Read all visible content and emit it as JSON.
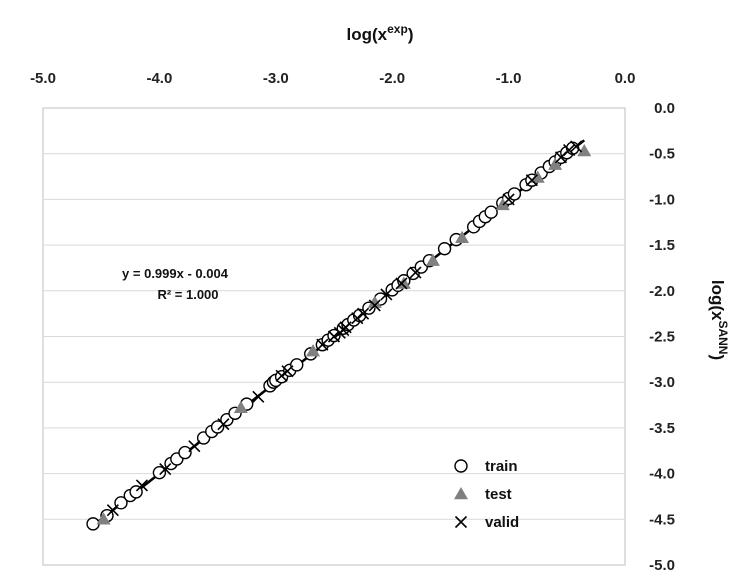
{
  "chart_data": {
    "type": "scatter",
    "x_title_base": "log(x",
    "x_title_sup": "exp",
    "x_title_close": ")",
    "y_title_base": "log(x",
    "y_title_sup": "SANN",
    "y_title_close": ")",
    "x_axis_position": "top",
    "y_axis_position": "right",
    "xlim": [
      -5.0,
      0.0
    ],
    "ylim": [
      -5.0,
      0.0
    ],
    "x_ticks": [
      -5.0,
      -4.0,
      -3.0,
      -2.0,
      -1.0,
      0.0
    ],
    "x_tick_labels": [
      "-5.0",
      "-4.0",
      "-3.0",
      "-2.0",
      "-1.0",
      "0.0"
    ],
    "y_ticks": [
      0.0,
      -0.5,
      -1.0,
      -1.5,
      -2.0,
      -2.5,
      -3.0,
      -3.5,
      -4.0,
      -4.5,
      -5.0
    ],
    "y_tick_labels": [
      "0.0",
      "-0.5",
      "-1.0",
      "-1.5",
      "-2.0",
      "-2.5",
      "-3.0",
      "-3.5",
      "-4.0",
      "-4.5",
      "-5.0"
    ],
    "grid": "horizontal",
    "legend_position": "bottom-right",
    "trendline": {
      "slope": 0.999,
      "intercept": -0.004,
      "x_range": [
        -4.6,
        -0.35
      ]
    },
    "annotation_lines": [
      "y = 0.999x - 0.004",
      "R² = 1.000"
    ],
    "series": [
      {
        "name": "train",
        "marker": "circle",
        "color": "#000000",
        "points": [
          [
            -4.57,
            -4.55
          ],
          [
            -4.45,
            -4.46
          ],
          [
            -4.33,
            -4.32
          ],
          [
            -4.25,
            -4.24
          ],
          [
            -4.2,
            -4.2
          ],
          [
            -4.0,
            -3.99
          ],
          [
            -3.9,
            -3.89
          ],
          [
            -3.85,
            -3.84
          ],
          [
            -3.78,
            -3.77
          ],
          [
            -3.62,
            -3.61
          ],
          [
            -3.55,
            -3.54
          ],
          [
            -3.5,
            -3.49
          ],
          [
            -3.42,
            -3.41
          ],
          [
            -3.35,
            -3.34
          ],
          [
            -3.25,
            -3.24
          ],
          [
            -3.05,
            -3.04
          ],
          [
            -3.02,
            -3.0
          ],
          [
            -3.0,
            -2.98
          ],
          [
            -2.95,
            -2.94
          ],
          [
            -2.88,
            -2.87
          ],
          [
            -2.82,
            -2.81
          ],
          [
            -2.7,
            -2.69
          ],
          [
            -2.6,
            -2.59
          ],
          [
            -2.55,
            -2.54
          ],
          [
            -2.5,
            -2.49
          ],
          [
            -2.42,
            -2.41
          ],
          [
            -2.38,
            -2.37
          ],
          [
            -2.33,
            -2.32
          ],
          [
            -2.28,
            -2.27
          ],
          [
            -2.2,
            -2.19
          ],
          [
            -2.1,
            -2.09
          ],
          [
            -2.0,
            -1.99
          ],
          [
            -1.95,
            -1.94
          ],
          [
            -1.9,
            -1.89
          ],
          [
            -1.82,
            -1.81
          ],
          [
            -1.75,
            -1.74
          ],
          [
            -1.68,
            -1.67
          ],
          [
            -1.55,
            -1.54
          ],
          [
            -1.45,
            -1.44
          ],
          [
            -1.3,
            -1.3
          ],
          [
            -1.25,
            -1.24
          ],
          [
            -1.2,
            -1.19
          ],
          [
            -1.15,
            -1.14
          ],
          [
            -1.05,
            -1.04
          ],
          [
            -1.0,
            -0.99
          ],
          [
            -0.95,
            -0.94
          ],
          [
            -0.85,
            -0.84
          ],
          [
            -0.8,
            -0.79
          ],
          [
            -0.72,
            -0.71
          ],
          [
            -0.65,
            -0.64
          ],
          [
            -0.6,
            -0.59
          ],
          [
            -0.55,
            -0.54
          ],
          [
            -0.5,
            -0.49
          ],
          [
            -0.45,
            -0.44
          ]
        ]
      },
      {
        "name": "test",
        "marker": "triangle",
        "color": "#808080",
        "points": [
          [
            -4.48,
            -4.5
          ],
          [
            -3.3,
            -3.28
          ],
          [
            -2.68,
            -2.66
          ],
          [
            -2.15,
            -2.13
          ],
          [
            -1.9,
            -1.92
          ],
          [
            -1.65,
            -1.67
          ],
          [
            -1.4,
            -1.42
          ],
          [
            -1.05,
            -1.06
          ],
          [
            -0.75,
            -0.76
          ],
          [
            -0.6,
            -0.62
          ],
          [
            -0.35,
            -0.47
          ]
        ]
      },
      {
        "name": "valid",
        "marker": "x",
        "color": "#000000",
        "points": [
          [
            -4.4,
            -4.4
          ],
          [
            -4.15,
            -4.13
          ],
          [
            -3.95,
            -3.95
          ],
          [
            -3.7,
            -3.7
          ],
          [
            -3.45,
            -3.46
          ],
          [
            -3.15,
            -3.16
          ],
          [
            -2.95,
            -2.93
          ],
          [
            -2.9,
            -2.88
          ],
          [
            -2.6,
            -2.59
          ],
          [
            -2.5,
            -2.5
          ],
          [
            -2.45,
            -2.46
          ],
          [
            -2.42,
            -2.43
          ],
          [
            -2.4,
            -2.4
          ],
          [
            -2.3,
            -2.3
          ],
          [
            -2.25,
            -2.25
          ],
          [
            -2.15,
            -2.16
          ],
          [
            -2.05,
            -2.04
          ],
          [
            -1.92,
            -1.92
          ],
          [
            -1.8,
            -1.8
          ],
          [
            -1.0,
            -1.0
          ],
          [
            -0.8,
            -0.79
          ],
          [
            -0.55,
            -0.54
          ],
          [
            -0.48,
            -0.46
          ],
          [
            -0.42,
            -0.42
          ]
        ]
      }
    ]
  }
}
